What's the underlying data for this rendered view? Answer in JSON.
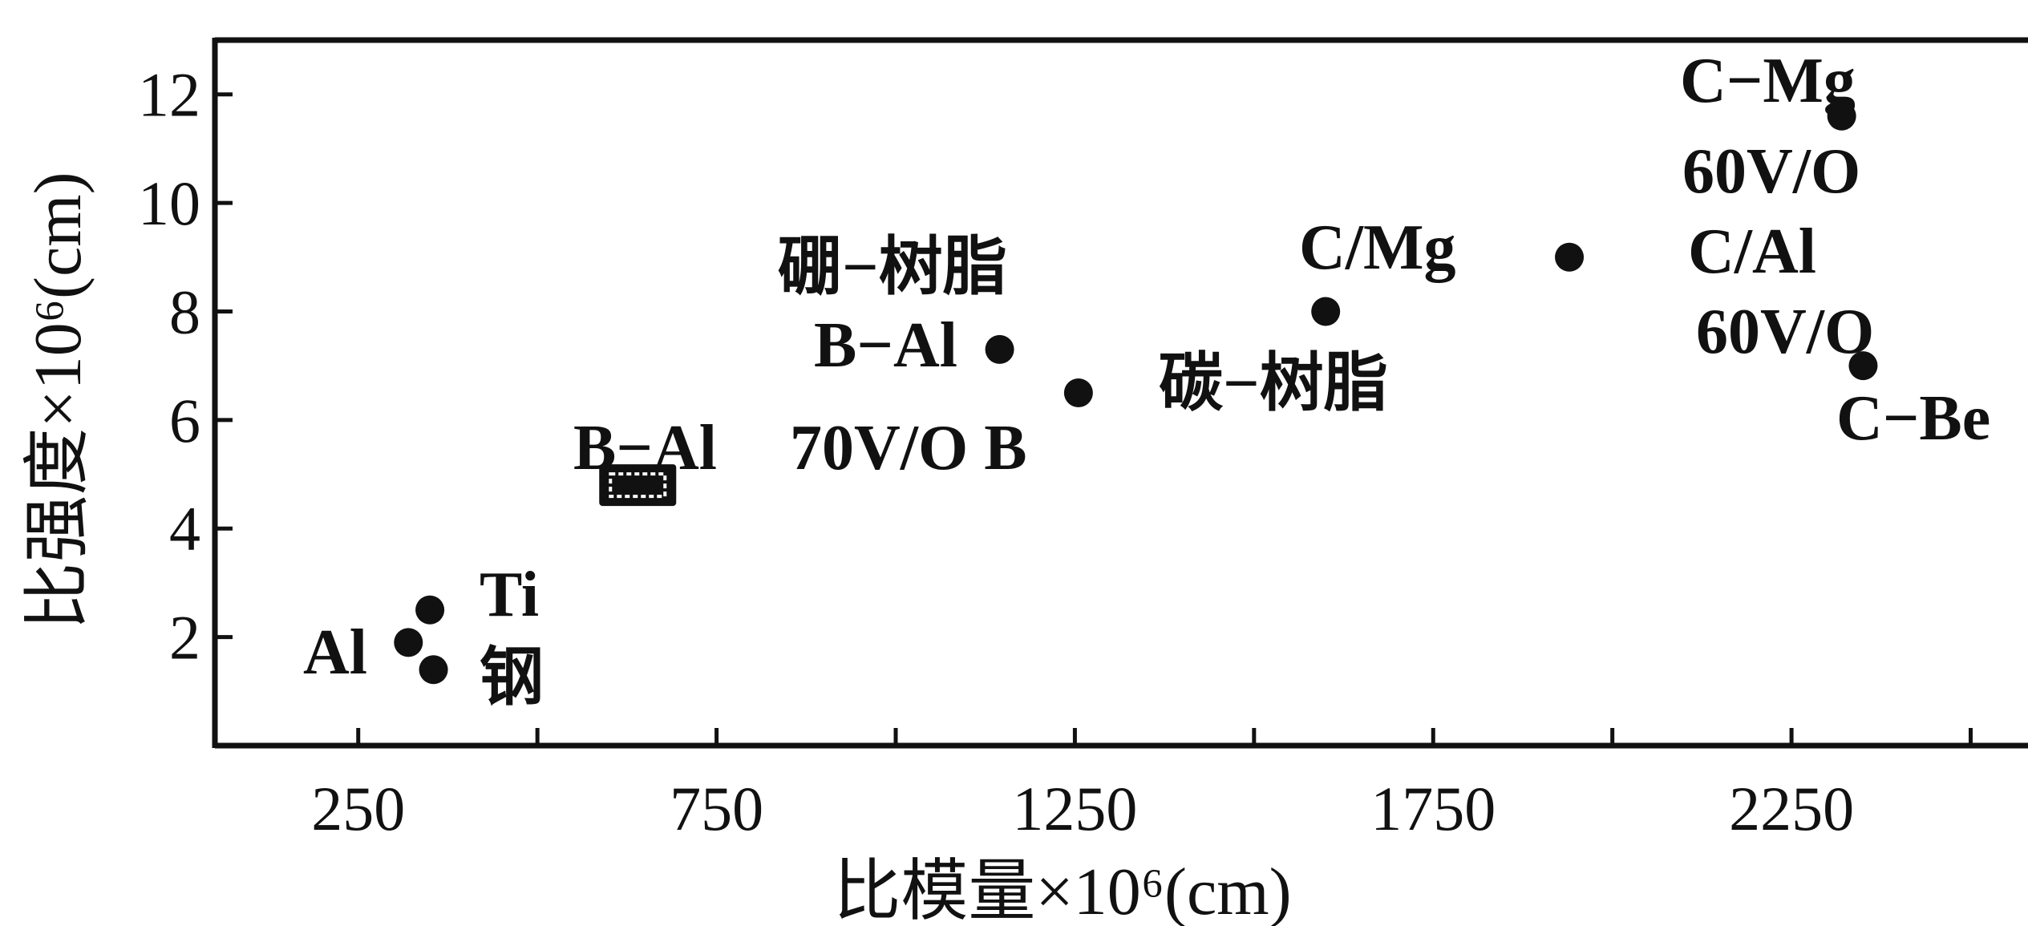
{
  "chart_data": {
    "type": "scatter",
    "title": "",
    "xlabel": "比模量×10⁶(cm)",
    "ylabel": "比强度×10⁶(cm)",
    "xlim": [
      50,
      2580
    ],
    "ylim": [
      0,
      13
    ],
    "x_ticks": [
      250,
      750,
      1250,
      1750,
      2250
    ],
    "x_tick_labels": [
      "250",
      "750",
      "1250",
      "1750",
      "2250"
    ],
    "y_ticks": [
      2,
      4,
      6,
      8,
      10,
      12
    ],
    "y_tick_labels": [
      "2",
      "4",
      "6",
      "8",
      "10",
      "12"
    ],
    "grid": false,
    "legend": "none",
    "points": [
      {
        "label": "Al",
        "x": 320,
        "y": 1.9,
        "marker": "circle"
      },
      {
        "label": "Ti",
        "x": 350,
        "y": 2.5,
        "marker": "circle"
      },
      {
        "label": "钢",
        "x": 355,
        "y": 1.4,
        "marker": "circle"
      },
      {
        "label": "B−Al",
        "x": 640,
        "y": 4.8,
        "marker": "square"
      },
      {
        "label": "B−Al 70V/O B",
        "x": 1145,
        "y": 7.3,
        "marker": "circle"
      },
      {
        "label": "碳−树脂",
        "x": 1255,
        "y": 6.5,
        "marker": "circle"
      },
      {
        "label": "C/Mg",
        "x": 1600,
        "y": 8.0,
        "marker": "circle"
      },
      {
        "label": "C/Al 60V/O",
        "x": 1940,
        "y": 9.0,
        "marker": "circle"
      },
      {
        "label": "C−Mg 60V/O",
        "x": 2320,
        "y": 11.6,
        "marker": "circle"
      },
      {
        "label": "C−Be",
        "x": 2350,
        "y": 7.0,
        "marker": "circle"
      }
    ],
    "annotations": [
      "Al",
      "Ti",
      "钢",
      "B−Al",
      "70V/O B",
      "硼−树脂",
      "B−Al",
      "碳−树脂",
      "C/Mg",
      "C/Al",
      "60V/O",
      "C−Mg",
      "60V/O",
      "C−Be"
    ],
    "colors": {
      "marker": "#111111",
      "axis": "#111111",
      "background": "#ffffff"
    }
  }
}
